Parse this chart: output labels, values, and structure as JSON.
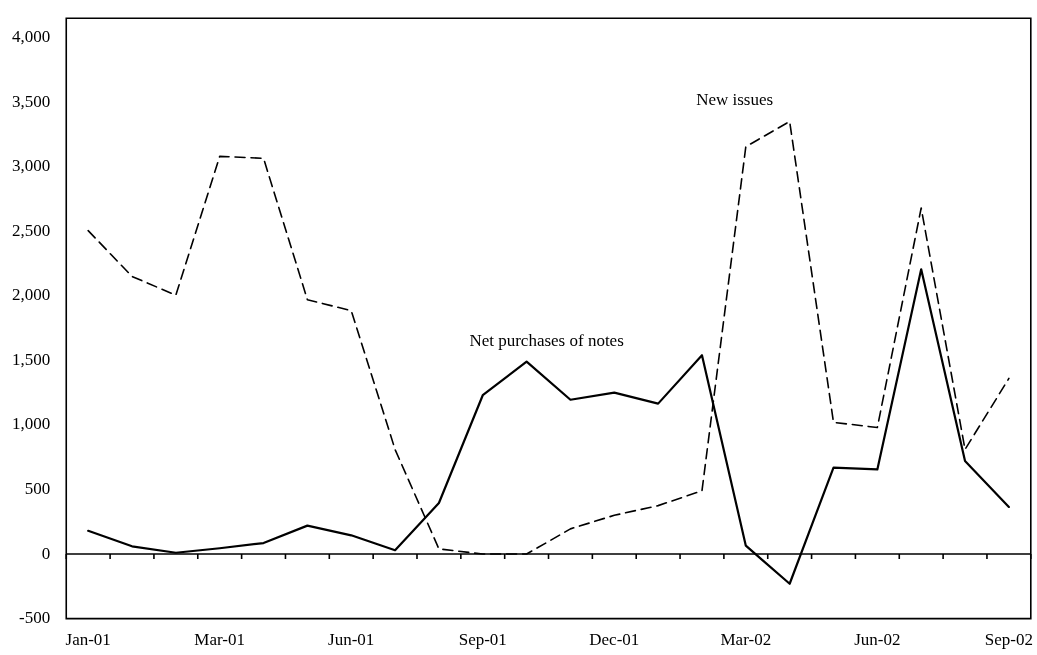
{
  "chart_data": {
    "type": "line",
    "categories": [
      "Jan-01",
      null,
      null,
      "Mar-01",
      null,
      null,
      "Jun-01",
      null,
      null,
      "Sep-01",
      null,
      null,
      "Dec-01",
      null,
      null,
      "Mar-02",
      null,
      null,
      "Jun-02",
      null,
      null,
      "Sep-02"
    ],
    "series": [
      {
        "name": "Net purchases of notes",
        "color": "#000000",
        "line_style": "solid",
        "values": [
          180,
          60,
          10,
          45,
          85,
          220,
          145,
          30,
          395,
          1230,
          1490,
          1195,
          1250,
          1165,
          1540,
          65,
          -230,
          670,
          655,
          2205,
          720,
          365
        ]
      },
      {
        "name": "New issues",
        "color": "#000000",
        "line_style": "dashed",
        "values": [
          2505,
          2150,
          2005,
          3080,
          3065,
          1970,
          1885,
          810,
          40,
          0,
          0,
          195,
          300,
          375,
          490,
          3155,
          3350,
          1020,
          980,
          2680,
          810,
          1360
        ]
      }
    ],
    "ylim": [
      -500,
      4150
    ],
    "yticks": [
      {
        "value": -500,
        "label": "-500"
      },
      0,
      500,
      {
        "value": 1000,
        "label": "1,000"
      },
      {
        "value": 1500,
        "label": "1,500"
      },
      {
        "value": 2000,
        "label": "2,000"
      },
      {
        "value": 2500,
        "label": "2,500"
      },
      {
        "value": 3000,
        "label": "3,000"
      },
      {
        "value": 3500,
        "label": "3,500"
      },
      {
        "value": 4000,
        "label": "4,000"
      }
    ],
    "marker": "none"
  }
}
